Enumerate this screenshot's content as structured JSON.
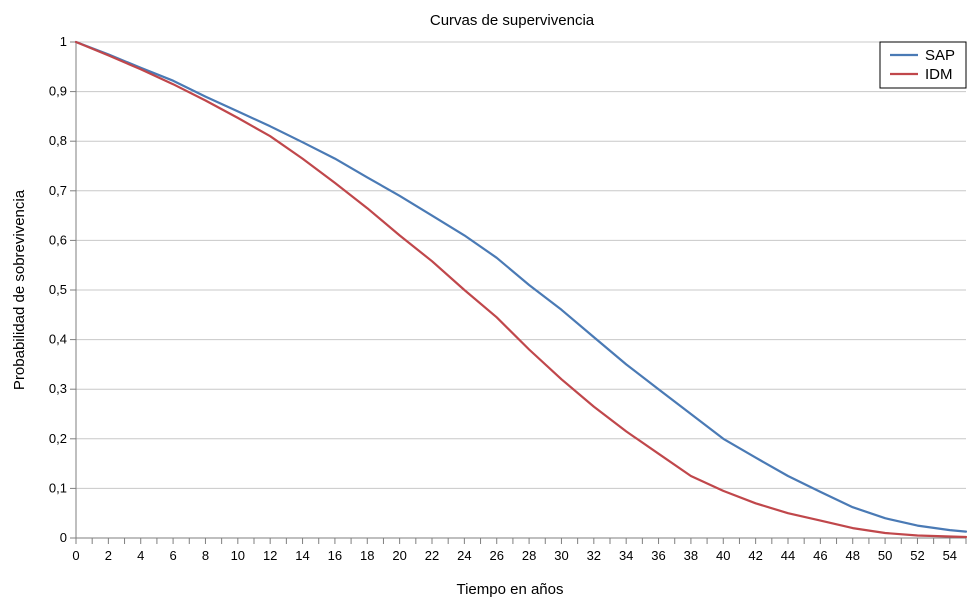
{
  "chart_data": {
    "type": "line",
    "title": "Curvas de supervivencia",
    "xlabel": "Tiempo en años",
    "ylabel": "Probabilidad de sobrevivencia",
    "xlim": [
      0,
      55
    ],
    "ylim": [
      0,
      1
    ],
    "x_ticks": [
      "0",
      "2",
      "4",
      "6",
      "8",
      "10",
      "12",
      "14",
      "16",
      "18",
      "20",
      "22",
      "24",
      "26",
      "28",
      "30",
      "32",
      "34",
      "36",
      "38",
      "40",
      "42",
      "44",
      "46",
      "48",
      "50",
      "52",
      "54"
    ],
    "y_ticks": [
      "0",
      "0,1",
      "0,2",
      "0,3",
      "0,4",
      "0,5",
      "0,6",
      "0,7",
      "0,8",
      "0,9",
      "1"
    ],
    "grid": "horizontal",
    "legend_position": "top-right",
    "x": [
      0,
      2,
      4,
      6,
      8,
      10,
      12,
      14,
      16,
      18,
      20,
      22,
      24,
      26,
      28,
      30,
      32,
      34,
      36,
      38,
      40,
      42,
      44,
      46,
      48,
      50,
      52,
      54,
      55
    ],
    "series": [
      {
        "name": "SAP",
        "color": "#4a7ab5",
        "values": [
          1.0,
          0.975,
          0.948,
          0.922,
          0.89,
          0.86,
          0.83,
          0.798,
          0.765,
          0.727,
          0.69,
          0.65,
          0.61,
          0.565,
          0.51,
          0.46,
          0.405,
          0.35,
          0.3,
          0.25,
          0.2,
          0.162,
          0.125,
          0.093,
          0.062,
          0.04,
          0.025,
          0.016,
          0.013
        ]
      },
      {
        "name": "IDM",
        "color": "#c0474b",
        "values": [
          1.0,
          0.973,
          0.945,
          0.915,
          0.882,
          0.847,
          0.81,
          0.765,
          0.716,
          0.665,
          0.61,
          0.558,
          0.5,
          0.445,
          0.38,
          0.32,
          0.265,
          0.215,
          0.17,
          0.125,
          0.095,
          0.07,
          0.05,
          0.035,
          0.02,
          0.01,
          0.005,
          0.003,
          0.002
        ]
      }
    ]
  }
}
